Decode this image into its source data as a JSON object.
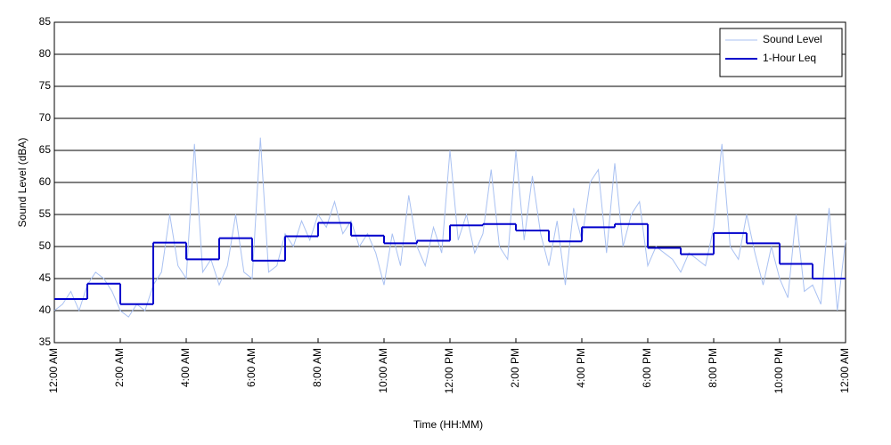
{
  "chart_data": {
    "type": "line",
    "xlabel": "Time (HH:MM)",
    "ylabel": "Sound Level (dBA)",
    "xlim": [
      0,
      24
    ],
    "ylim": [
      35,
      85
    ],
    "xticks": [
      {
        "value": 0,
        "label": "12:00 AM"
      },
      {
        "value": 2,
        "label": "2:00 AM"
      },
      {
        "value": 4,
        "label": "4:00 AM"
      },
      {
        "value": 6,
        "label": "6:00 AM"
      },
      {
        "value": 8,
        "label": "8:00 AM"
      },
      {
        "value": 10,
        "label": "10:00 AM"
      },
      {
        "value": 12,
        "label": "12:00 PM"
      },
      {
        "value": 14,
        "label": "2:00 PM"
      },
      {
        "value": 16,
        "label": "4:00 PM"
      },
      {
        "value": 18,
        "label": "6:00 PM"
      },
      {
        "value": 20,
        "label": "8:00 PM"
      },
      {
        "value": 22,
        "label": "10:00 PM"
      },
      {
        "value": 24,
        "label": "12:00 AM"
      }
    ],
    "yticks": [
      35,
      40,
      45,
      50,
      55,
      60,
      65,
      70,
      75,
      80,
      85
    ],
    "grid": "y",
    "legend": "upper right",
    "series": [
      {
        "name": "Sound Level",
        "color": "#a9c1f2",
        "x": [
          0,
          0.25,
          0.5,
          0.75,
          1,
          1.25,
          1.5,
          1.75,
          2,
          2.25,
          2.5,
          2.75,
          3,
          3.25,
          3.5,
          3.75,
          4,
          4.25,
          4.5,
          4.75,
          5,
          5.25,
          5.5,
          5.75,
          6,
          6.25,
          6.5,
          6.75,
          7,
          7.25,
          7.5,
          7.75,
          8,
          8.25,
          8.5,
          8.75,
          9,
          9.25,
          9.5,
          9.75,
          10,
          10.25,
          10.5,
          10.75,
          11,
          11.25,
          11.5,
          11.75,
          12,
          12.25,
          12.5,
          12.75,
          13,
          13.25,
          13.5,
          13.75,
          14,
          14.25,
          14.5,
          14.75,
          15,
          15.25,
          15.5,
          15.75,
          16,
          16.25,
          16.5,
          16.75,
          17,
          17.25,
          17.5,
          17.75,
          18,
          18.25,
          18.5,
          18.75,
          19,
          19.25,
          19.5,
          19.75,
          20,
          20.25,
          20.5,
          20.75,
          21,
          21.25,
          21.5,
          21.75,
          22,
          22.25,
          22.5,
          22.75,
          23,
          23.25,
          23.5,
          23.75,
          24
        ],
        "values": [
          40,
          41,
          43,
          40,
          44,
          46,
          45,
          43,
          40,
          39,
          41,
          40,
          44,
          46,
          55,
          47,
          45,
          66,
          46,
          48,
          44,
          47,
          55,
          46,
          45,
          67,
          46,
          47,
          52,
          50,
          54,
          51,
          55,
          53,
          57,
          52,
          54,
          50,
          52,
          49,
          44,
          52,
          47,
          58,
          50,
          47,
          53,
          49,
          65,
          51,
          55,
          49,
          52,
          62,
          50,
          48,
          65,
          51,
          61,
          52,
          47,
          54,
          44,
          56,
          51,
          60,
          62,
          49,
          63,
          50,
          55,
          57,
          47,
          50,
          49,
          48,
          46,
          49,
          48,
          47,
          53,
          66,
          50,
          48,
          55,
          49,
          44,
          50,
          45,
          42,
          55,
          43,
          44,
          41,
          56,
          40,
          51
        ]
      },
      {
        "name": "1-Hour Leq",
        "color": "#0000cc",
        "x": [
          0,
          1,
          2,
          3,
          4,
          5,
          6,
          7,
          8,
          9,
          10,
          11,
          12,
          13,
          14,
          15,
          16,
          17,
          18,
          19,
          20,
          21,
          22,
          23
        ],
        "values": [
          41.8,
          44.2,
          41.0,
          50.6,
          48.0,
          51.3,
          47.8,
          51.6,
          53.7,
          51.7,
          50.5,
          50.9,
          53.3,
          53.5,
          52.5,
          50.8,
          53.0,
          53.5,
          49.8,
          48.8,
          52.1,
          50.5,
          47.3,
          45.0
        ],
        "step": "post"
      }
    ]
  }
}
